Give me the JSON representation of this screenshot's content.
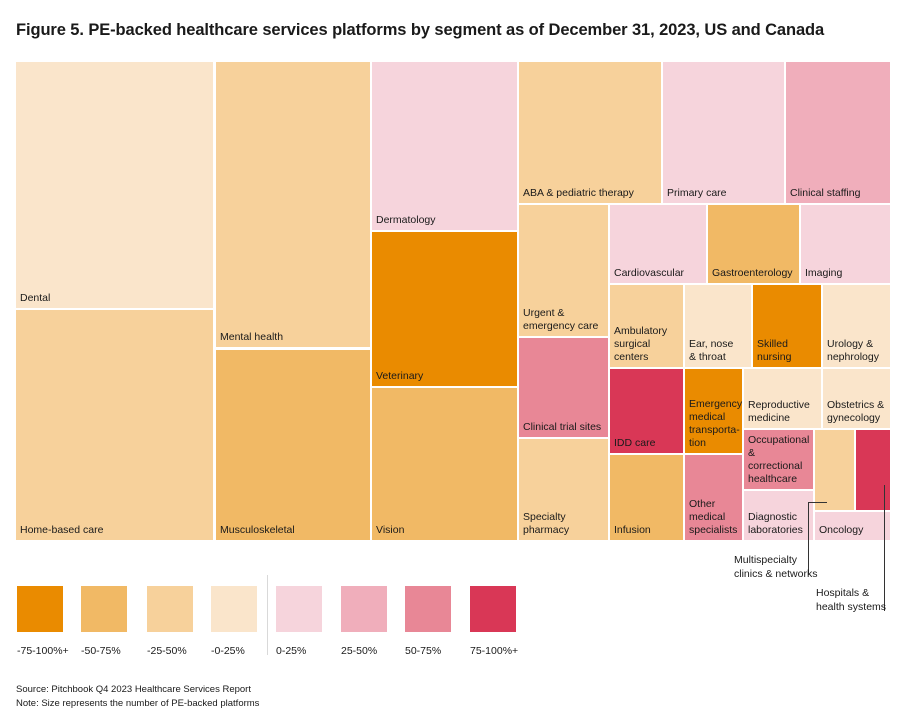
{
  "title": "Figure 5. PE-backed healthcare services platforms by segment as of December 31, 2023, US and Canada",
  "chart_data": {
    "type": "treemap",
    "title": "Figure 5. PE-backed healthcare services platforms by segment as of December 31, 2023, US and Canada",
    "size_measure": "number of PE-backed platforms",
    "color_measure": "change bucket",
    "legend": {
      "position": "bottom-left",
      "items": [
        {
          "label": "-75-100%+",
          "color": "#EA8B00"
        },
        {
          "label": "-50-75%",
          "color": "#F1B965"
        },
        {
          "label": "-25-50%",
          "color": "#F7D19B"
        },
        {
          "label": "-0-25%",
          "color": "#FAE5CB"
        },
        {
          "label": "0-25%",
          "color": "#F6D4DC"
        },
        {
          "label": "25-50%",
          "color": "#F0AEBB"
        },
        {
          "label": "50-75%",
          "color": "#E88796"
        },
        {
          "label": "75-100%+",
          "color": "#D93756"
        }
      ]
    },
    "segments": [
      {
        "name": "Dental",
        "bucket": "-0-25%"
      },
      {
        "name": "Home-based care",
        "bucket": "-25-50%"
      },
      {
        "name": "Mental health",
        "bucket": "-25-50%"
      },
      {
        "name": "Musculoskeletal",
        "bucket": "-50-75%"
      },
      {
        "name": "Dermatology",
        "bucket": "0-25%"
      },
      {
        "name": "Veterinary",
        "bucket": "-75-100%+"
      },
      {
        "name": "Vision",
        "bucket": "-50-75%"
      },
      {
        "name": "ABA & pediatric therapy",
        "bucket": "-25-50%"
      },
      {
        "name": "Primary care",
        "bucket": "0-25%"
      },
      {
        "name": "Clinical staffing",
        "bucket": "25-50%"
      },
      {
        "name": "Urgent & emergency care",
        "bucket": "-25-50%"
      },
      {
        "name": "Clinical trial sites",
        "bucket": "50-75%"
      },
      {
        "name": "Specialty pharmacy",
        "bucket": "-25-50%"
      },
      {
        "name": "Cardiovascular",
        "bucket": "0-25%"
      },
      {
        "name": "Gastroenterology",
        "bucket": "-50-75%"
      },
      {
        "name": "Imaging",
        "bucket": "0-25%"
      },
      {
        "name": "Ambulatory surgical centers",
        "bucket": "-25-50%"
      },
      {
        "name": "Ear, nose & throat",
        "bucket": "-0-25%"
      },
      {
        "name": "Skilled nursing",
        "bucket": "-75-100%+"
      },
      {
        "name": "Urology & nephrology",
        "bucket": "-0-25%"
      },
      {
        "name": "IDD care",
        "bucket": "75-100%+"
      },
      {
        "name": "Infusion",
        "bucket": "-50-75%"
      },
      {
        "name": "Emergency medical transportation",
        "bucket": "-75-100%+"
      },
      {
        "name": "Other medical specialists",
        "bucket": "50-75%"
      },
      {
        "name": "Reproductive medicine",
        "bucket": "-0-25%"
      },
      {
        "name": "Obstetrics & gynecology",
        "bucket": "-0-25%"
      },
      {
        "name": "Occupational & correctional healthcare",
        "bucket": "50-75%"
      },
      {
        "name": "Diagnostic laboratories",
        "bucket": "0-25%"
      },
      {
        "name": "Multispecialty clinics & networks",
        "bucket": "-25-50%"
      },
      {
        "name": "Hospitals & health systems",
        "bucket": "75-100%+"
      },
      {
        "name": "Oncology",
        "bucket": "0-25%"
      }
    ]
  },
  "tile_labels": {
    "Dental": "Dental",
    "Home-based care": "Home-based care",
    "Mental health": "Mental health",
    "Musculoskeletal": "Musculoskeletal",
    "Dermatology": "Dermatology",
    "Veterinary": "Veterinary",
    "Vision": "Vision",
    "ABA & pediatric therapy": "ABA & pediatric therapy",
    "Primary care": "Primary care",
    "Clinical staffing": "Clinical staffing",
    "Urgent & emergency care": "Urgent &\nemergency care",
    "Clinical trial sites": "Clinical trial sites",
    "Specialty pharmacy": "Specialty\npharmacy",
    "Cardiovascular": "Cardiovascular",
    "Gastroenterology": "Gastroenterology",
    "Imaging": "Imaging",
    "Ambulatory surgical centers": "Ambulatory\nsurgical\ncenters",
    "Ear, nose & throat": "Ear, nose\n& throat",
    "Skilled nursing": "Skilled\nnursing",
    "Urology & nephrology": "Urology &\nnephrology",
    "IDD care": "IDD care",
    "Infusion": "Infusion",
    "Emergency medical transportation": "Emergency\nmedical\ntransporta-\ntion",
    "Other medical specialists": "Other\nmedical\nspecialists",
    "Reproductive medicine": "Reproductive\nmedicine",
    "Obstetrics & gynecology": "Obstetrics &\ngynecology",
    "Occupational & correctional healthcare": "Occupational\n& correctional\nhealthcare",
    "Diagnostic laboratories": "Diagnostic\nlaboratories",
    "Multispecialty clinics & networks": "",
    "Hospitals & health systems": "",
    "Oncology": "Oncology"
  },
  "callouts": {
    "multispecialty": "Multispecialty\nclinics & networks",
    "hospitals": "Hospitals &\nhealth systems"
  },
  "footnotes": {
    "source": "Source: Pitchbook Q4 2023 Healthcare Services Report",
    "note": "Note: Size represents the number of PE-backed platforms"
  }
}
